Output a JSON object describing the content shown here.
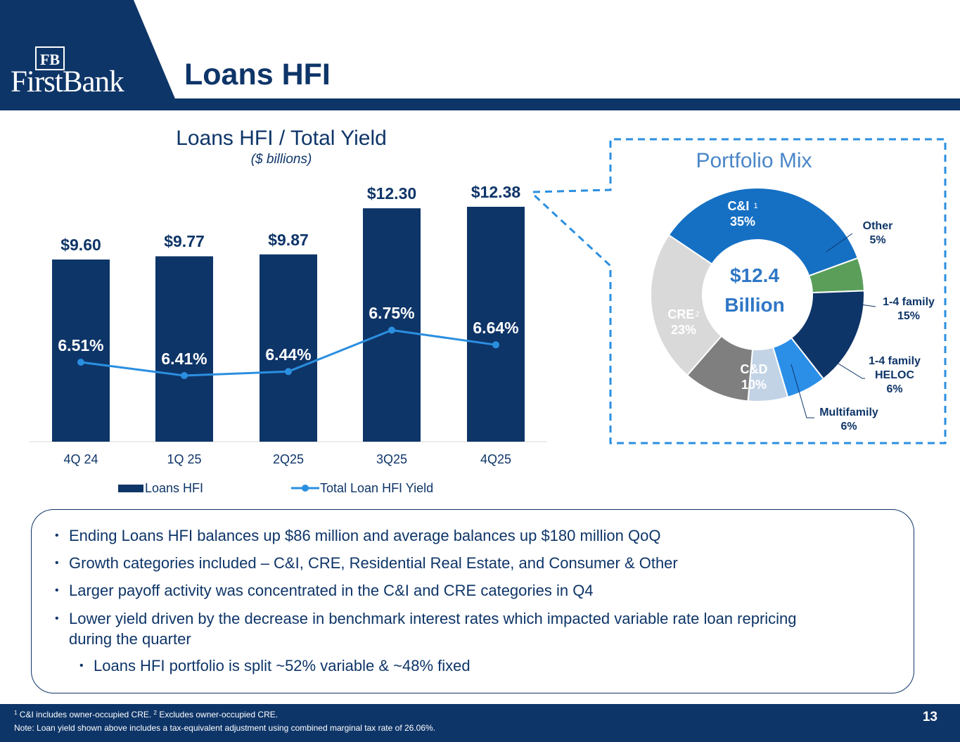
{
  "header": {
    "logo_mono": "FB",
    "logo_text": "FirstBank",
    "title": "Loans HFI",
    "colors": {
      "navy": "#0e3568",
      "accent_blue": "#2b8fe0"
    }
  },
  "chart": {
    "title": "Loans HFI / Total Yield",
    "subtitle": "($ billions)",
    "legend": {
      "bars": "Loans HFI",
      "line": "Total Loan HFI Yield"
    },
    "bar_labels": [
      "$9.60",
      "$9.77",
      "$9.87",
      "$12.30",
      "$12.38"
    ],
    "yield_labels": [
      "6.51%",
      "6.41%",
      "6.44%",
      "6.75%",
      "6.64%"
    ]
  },
  "chart_data": [
    {
      "type": "bar",
      "categories": [
        "4Q 24",
        "1Q 25",
        "2Q25",
        "3Q25",
        "4Q25"
      ],
      "series": [
        {
          "name": "Loans HFI",
          "type": "bar",
          "values": [
            9.6,
            9.77,
            9.87,
            12.3,
            12.38
          ],
          "color": "#0e3568"
        },
        {
          "name": "Total Loan HFI Yield",
          "type": "line",
          "values": [
            6.51,
            6.41,
            6.44,
            6.75,
            6.64
          ],
          "unit": "%",
          "color": "#2b8fe0"
        }
      ],
      "title": "Loans HFI / Total Yield",
      "subtitle": "($ billions)",
      "ylim": [
        0,
        13
      ],
      "legend_position": "bottom",
      "grid": false
    },
    {
      "type": "pie",
      "title": "Portfolio Mix",
      "center_label": [
        "$12.4",
        "Billion"
      ],
      "slices": [
        {
          "label": "C&I",
          "value": 35,
          "pct_label": "35%",
          "color": "#1570c4",
          "footnote": "1"
        },
        {
          "label": "Other",
          "value": 5,
          "pct_label": "5%",
          "color": "#5a9e5a"
        },
        {
          "label": "1-4 family",
          "value": 15,
          "pct_label": "15%",
          "color": "#0e3568"
        },
        {
          "label": "1-4 family HELOC",
          "value": 6,
          "pct_label": "6%",
          "color": "#2b8fe8"
        },
        {
          "label": "Multifamily",
          "value": 6,
          "pct_label": "6%",
          "color": "#c3d3e6"
        },
        {
          "label": "C&D",
          "value": 10,
          "pct_label": "10%",
          "color": "#7f7f7f"
        },
        {
          "label": "CRE",
          "value": 23,
          "pct_label": "23%",
          "color": "#d9d9d9",
          "footnote": "2"
        }
      ]
    }
  ],
  "mix": {
    "title": "Portfolio Mix",
    "center_amount": "$12.4",
    "center_unit": "Billion",
    "ci_label": "C&I",
    "ci_pct": "35%",
    "ci_sup": "1",
    "cre_label": "CRE",
    "cre_pct": "23%",
    "cre_sup": "2",
    "cd_label": "C&D",
    "cd_pct": "10%",
    "other_label": "Other",
    "other_pct": "5%",
    "family_label": "1-4 family",
    "family_pct": "15%",
    "heloc_label1": "1-4 family",
    "heloc_label2": "HELOC",
    "heloc_pct": "6%",
    "multi_label": "Multifamily",
    "multi_pct": "6%"
  },
  "bullets": [
    "Ending Loans HFI balances up $86 million and average balances up $180 million QoQ",
    "Growth categories included – C&I, CRE, Residential Real Estate, and Consumer & Other",
    "Larger payoff activity was concentrated in the C&I and CRE categories in Q4",
    "Lower yield driven by the decrease in benchmark interest rates which impacted variable rate loan repricing",
    "during the quarter",
    "Loans HFI portfolio is split ~52% variable & ~48% fixed"
  ],
  "bullet_marker": "•",
  "footer": {
    "sup1": "1",
    "note1a": " C&I includes owner-occupied CRE. ",
    "sup2": "2",
    "note1b": " Excludes owner-occupied CRE.",
    "note2": "Note: Loan yield shown above includes a tax-equivalent adjustment using combined marginal tax rate of 26.06%.",
    "page_number": "13"
  }
}
